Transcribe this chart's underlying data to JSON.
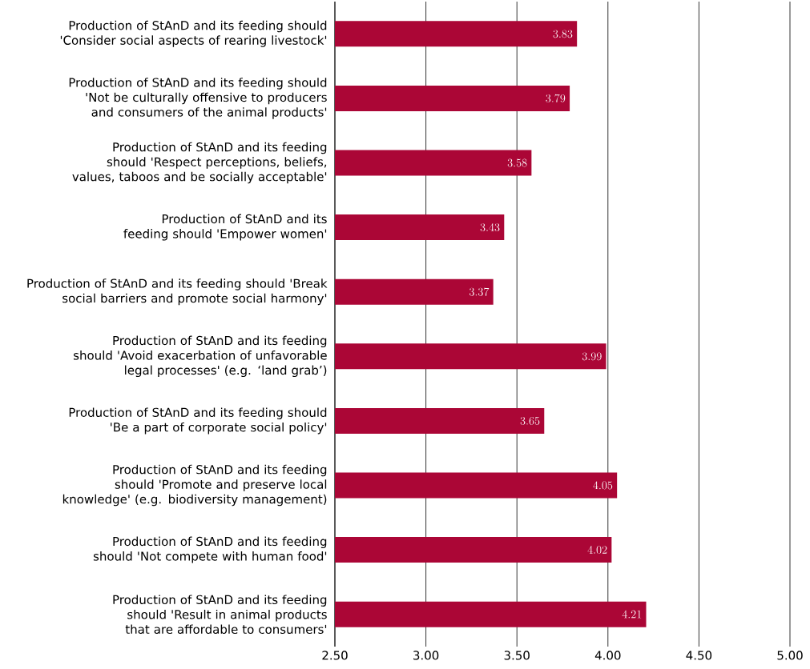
{
  "chart_data": {
    "type": "bar",
    "orientation": "horizontal",
    "categories": [
      "Production of StAnD and its feeding should 'Consider social aspects of rearing livestock'",
      "Production of StAnD and its feeding should 'Not be culturally offensive to producers and consumers of the animal products'",
      "Production of StAnD and its feeding should 'Respect perceptions, beliefs, values, taboos and be socially acceptable'",
      "Production of StAnD and its feeding should 'Empower women'",
      "Production of StAnD and its feeding should 'Break social barriers and promote social harmony'",
      "Production of StAnD and its feeding should 'Avoid exacerbation of unfavorable legal processes' (e.g. ‘land grab’)",
      "Production of StAnD and its feeding should 'Be a part of corporate social policy'",
      "Production of StAnD and its feeding should 'Promote and preserve local knowledge' (e.g. biodiversity management)",
      "Production of StAnD and its feeding should 'Not compete with human food'",
      "Production of StAnD and its feeding should 'Result in animal products that are affordable to consumers'"
    ],
    "values": [
      3.83,
      3.79,
      3.58,
      3.43,
      3.37,
      3.99,
      3.65,
      4.05,
      4.02,
      4.21
    ],
    "color": "#ab0636",
    "xlim": [
      2.5,
      5.0
    ],
    "xticks": [
      {
        "value": 2.5,
        "label": "2.50"
      },
      {
        "value": 3.0,
        "label": "3.00"
      },
      {
        "value": 3.5,
        "label": "3.50"
      },
      {
        "value": 4.0,
        "label": "4.00"
      },
      {
        "value": 4.5,
        "label": "4.50"
      },
      {
        "value": 5.0,
        "label": "5.00"
      }
    ],
    "grid": "x",
    "data_labels": true
  }
}
